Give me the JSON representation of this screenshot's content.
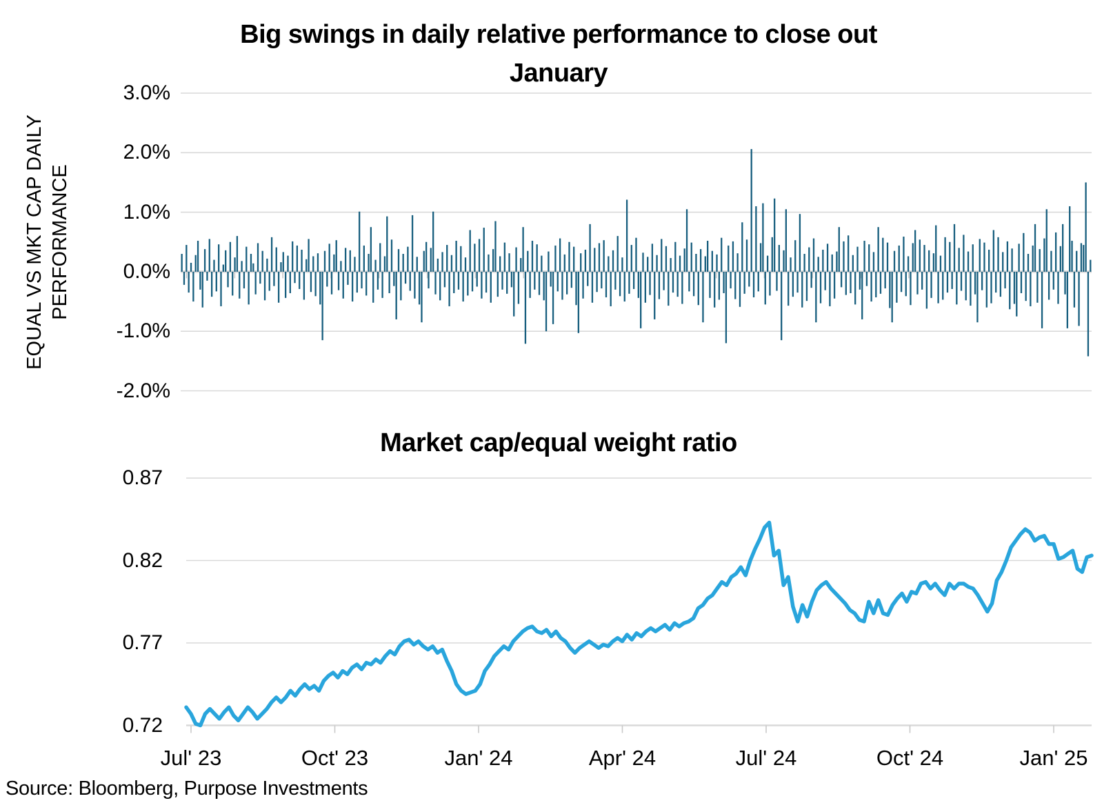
{
  "page": {
    "background": "#ffffff",
    "source_note": "Source: Bloomberg, Purpose Investments"
  },
  "chart_data": [
    {
      "type": "bar",
      "title": "Big swings in daily relative performance to close out January",
      "title_lines": [
        "Big swings in daily relative performance to close out",
        "January"
      ],
      "ylabel": "EQUAL VS MKT CAP DAILY PERFORMANCE",
      "ylabel_lines": [
        "EQUAL VS MKT CAP DAILY",
        "PERFORMANCE"
      ],
      "unit": "percent",
      "ylim": [
        -2.0,
        3.0
      ],
      "y_tick_labels": [
        "3.0%",
        "2.0%",
        "1.0%",
        "0.0%",
        "-1.0%",
        "-2.0%"
      ],
      "x_tick_labels": [],
      "x_minor_ticks": "monthly, Jul 2023 through Jan 2025, labels hidden",
      "x_range": "Jul' 23 to early Feb' 25 (shared axis with lower chart)",
      "grid": true,
      "legend": "none",
      "bar_color": "#175E7E",
      "gridline_color": "#D9D9D9",
      "tick_color": "#C9C9C9",
      "values": [
        0.3,
        -0.22,
        0.45,
        -0.35,
        0.15,
        -0.5,
        0.28,
        0.52,
        -0.3,
        -0.6,
        0.38,
        -0.15,
        0.55,
        -0.42,
        0.2,
        -0.33,
        0.46,
        -0.58,
        0.12,
        0.36,
        -0.26,
        0.5,
        -0.4,
        0.24,
        0.6,
        -0.45,
        0.18,
        -0.28,
        0.42,
        -0.55,
        0.3,
        0.14,
        -0.38,
        0.48,
        -0.2,
        0.35,
        -0.48,
        0.22,
        -0.32,
        0.58,
        -0.24,
        0.41,
        -0.52,
        0.16,
        0.33,
        -0.44,
        0.27,
        -0.36,
        0.51,
        -0.19,
        0.44,
        -0.29,
        0.37,
        -0.47,
        0.21,
        0.55,
        -0.34,
        0.26,
        -0.41,
        0.31,
        -0.55,
        -1.15,
        0.35,
        -0.25,
        0.47,
        -0.38,
        0.29,
        0.53,
        -0.31,
        0.18,
        -0.45,
        0.4,
        -0.22,
        0.36,
        -0.5,
        0.25,
        -0.35,
        1.01,
        -0.28,
        0.44,
        -0.4,
        0.3,
        0.75,
        -0.52,
        0.2,
        -0.3,
        0.48,
        -0.44,
        0.26,
        0.93,
        -0.36,
        0.54,
        -0.24,
        -0.8,
        0.38,
        -0.48,
        0.3,
        -0.2,
        0.42,
        -0.32,
        0.95,
        -0.45,
        0.25,
        -0.55,
        -0.85,
        0.35,
        0.5,
        -0.28,
        0.4,
        1.01,
        -0.38,
        0.22,
        -0.48,
        0.33,
        -0.26,
        0.45,
        -0.58,
        0.28,
        -0.36,
        0.52,
        -0.3,
        0.43,
        -0.5,
        0.24,
        -0.4,
        0.7,
        -0.33,
        0.47,
        -0.25,
        0.55,
        -0.45,
        0.74,
        -0.35,
        0.29,
        -0.52,
        0.38,
        0.85,
        -0.42,
        0.26,
        -0.3,
        0.49,
        -0.37,
        0.31,
        -0.26,
        -0.75,
        0.41,
        -0.54,
        0.23,
        0.75,
        -1.21,
        0.35,
        -0.44,
        0.52,
        -0.3,
        0.46,
        -0.39,
        0.27,
        -0.48,
        -1.0,
        0.34,
        -0.25,
        -0.88,
        0.44,
        -0.33,
        0.56,
        -0.47,
        0.29,
        -0.38,
        0.5,
        -0.27,
        0.42,
        -0.56,
        -1.03,
        0.31,
        -0.45,
        0.37,
        -0.24,
        0.8,
        -0.52,
        0.4,
        -0.34,
        0.48,
        -0.28,
        0.53,
        -0.43,
        0.26,
        -0.58,
        0.36,
        -0.3,
        0.6,
        -0.41,
        0.24,
        -0.5,
        1.21,
        -0.37,
        0.45,
        -0.29,
        0.57,
        -0.44,
        -0.95,
        0.32,
        -0.52,
        0.25,
        -0.39,
        0.47,
        -0.8,
        0.28,
        -0.46,
        0.55,
        -0.31,
        0.43,
        -0.57,
        0.23,
        -0.35,
        0.5,
        -0.42,
        0.27,
        -0.54,
        0.39,
        1.05,
        -0.33,
        0.49,
        -0.41,
        0.3,
        -0.56,
        0.38,
        -0.85,
        0.26,
        0.52,
        -0.44,
        0.35,
        -0.6,
        0.29,
        -0.47,
        0.57,
        -0.36,
        -1.2,
        0.44,
        -0.28,
        0.51,
        -0.46,
        0.31,
        -0.59,
        0.83,
        -0.37,
        0.54,
        -0.25,
        2.06,
        -0.43,
        1.1,
        -0.33,
        0.48,
        1.15,
        -0.55,
        0.27,
        -0.4,
        0.58,
        1.23,
        -0.32,
        0.45,
        -1.15,
        0.36,
        1.05,
        -0.57,
        0.24,
        -0.42,
        0.53,
        -0.35,
        0.97,
        -0.6,
        0.3,
        -0.49,
        0.41,
        -0.27,
        0.56,
        -0.85,
        0.25,
        -0.53,
        0.37,
        -0.31,
        0.47,
        -0.58,
        0.29,
        -0.45,
        0.34,
        0.75,
        -0.26,
        0.51,
        -0.39,
        0.61,
        -0.36,
        0.28,
        -0.55,
        0.42,
        -0.3,
        -0.8,
        0.52,
        -0.24,
        0.46,
        -0.5,
        0.33,
        -0.43,
        0.75,
        -0.37,
        0.57,
        -0.28,
        0.49,
        -0.61,
        -0.85,
        0.35,
        -0.52,
        0.44,
        -0.34,
        0.59,
        -0.41,
        0.26,
        -0.56,
        0.48,
        0.7,
        -0.38,
        0.54,
        -0.3,
        0.45,
        -0.62,
        0.36,
        -0.44,
        0.31,
        0.78,
        -0.53,
        0.27,
        -0.47,
        0.58,
        -0.35,
        0.5,
        -0.29,
        0.8,
        -0.55,
        0.4,
        -0.32,
        0.62,
        -0.48,
        0.34,
        -0.57,
        0.46,
        -0.38,
        -0.85,
        0.55,
        -0.31,
        0.49,
        -0.6,
        0.37,
        -0.53,
        0.7,
        -0.35,
        0.58,
        -0.42,
        0.33,
        -0.28,
        0.51,
        -0.63,
        0.39,
        -0.54,
        -0.75,
        0.47,
        -0.36,
        0.65,
        -0.49,
        0.3,
        -0.58,
        0.44,
        0.8,
        -0.52,
        0.38,
        -0.95,
        0.56,
        1.05,
        -0.47,
        0.35,
        -0.3,
        0.66,
        -0.54,
        0.43,
        0.8,
        -0.38,
        -0.95,
        1.1,
        0.52,
        -0.6,
        0.35,
        -0.91,
        0.48,
        0.45,
        1.5,
        -1.42,
        0.2
      ]
    },
    {
      "type": "line",
      "title": "Market cap/equal weight ratio",
      "ylim": [
        0.72,
        0.87
      ],
      "y_tick_labels": [
        "0.87",
        "0.82",
        "0.77",
        "0.72"
      ],
      "x_tick_labels": [
        "Jul' 23",
        "Oct' 23",
        "Jan' 24",
        "Apr' 24",
        "Jul' 24",
        "Oct' 24",
        "Jan' 25"
      ],
      "grid": true,
      "legend": "none",
      "line_color": "#29A5DC",
      "gridline_color": "#D9D9D9",
      "tick_color": "#C9C9C9",
      "values": [
        0.731,
        0.727,
        0.721,
        0.72,
        0.727,
        0.73,
        0.727,
        0.724,
        0.728,
        0.731,
        0.726,
        0.723,
        0.727,
        0.731,
        0.728,
        0.724,
        0.727,
        0.73,
        0.734,
        0.737,
        0.734,
        0.737,
        0.741,
        0.738,
        0.742,
        0.745,
        0.742,
        0.744,
        0.741,
        0.747,
        0.75,
        0.752,
        0.749,
        0.753,
        0.751,
        0.755,
        0.757,
        0.754,
        0.758,
        0.757,
        0.76,
        0.758,
        0.762,
        0.765,
        0.763,
        0.768,
        0.771,
        0.772,
        0.769,
        0.771,
        0.768,
        0.766,
        0.768,
        0.764,
        0.766,
        0.759,
        0.753,
        0.745,
        0.741,
        0.739,
        0.74,
        0.741,
        0.745,
        0.753,
        0.757,
        0.762,
        0.765,
        0.768,
        0.766,
        0.771,
        0.774,
        0.777,
        0.779,
        0.78,
        0.777,
        0.776,
        0.778,
        0.774,
        0.777,
        0.773,
        0.771,
        0.767,
        0.764,
        0.767,
        0.769,
        0.771,
        0.769,
        0.767,
        0.769,
        0.768,
        0.771,
        0.773,
        0.771,
        0.775,
        0.772,
        0.776,
        0.774,
        0.777,
        0.779,
        0.777,
        0.779,
        0.781,
        0.778,
        0.782,
        0.78,
        0.782,
        0.783,
        0.785,
        0.791,
        0.793,
        0.797,
        0.799,
        0.803,
        0.807,
        0.805,
        0.81,
        0.812,
        0.816,
        0.811,
        0.82,
        0.827,
        0.833,
        0.84,
        0.843,
        0.823,
        0.826,
        0.805,
        0.81,
        0.792,
        0.783,
        0.793,
        0.786,
        0.795,
        0.802,
        0.805,
        0.807,
        0.803,
        0.8,
        0.797,
        0.794,
        0.79,
        0.788,
        0.784,
        0.783,
        0.795,
        0.788,
        0.796,
        0.788,
        0.787,
        0.793,
        0.797,
        0.8,
        0.795,
        0.801,
        0.8,
        0.806,
        0.807,
        0.803,
        0.806,
        0.802,
        0.799,
        0.806,
        0.803,
        0.806,
        0.806,
        0.804,
        0.803,
        0.799,
        0.794,
        0.789,
        0.794,
        0.808,
        0.813,
        0.82,
        0.828,
        0.832,
        0.836,
        0.839,
        0.837,
        0.832,
        0.834,
        0.835,
        0.83,
        0.83,
        0.821,
        0.822,
        0.824,
        0.826,
        0.815,
        0.813,
        0.822,
        0.823
      ]
    }
  ]
}
